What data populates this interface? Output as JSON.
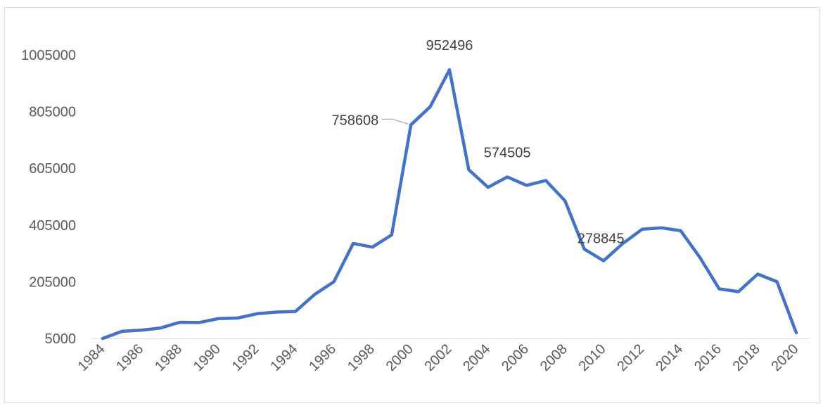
{
  "chart_data": {
    "type": "line",
    "title": "",
    "xlabel": "",
    "ylabel": "",
    "ylim": [
      5000,
      1005000
    ],
    "y_ticks": [
      5000,
      205000,
      405000,
      605000,
      805000,
      1005000
    ],
    "y_tick_labels": [
      "5000",
      "205000",
      "405000",
      "605000",
      "805000",
      "1005000"
    ],
    "x_tick_labels": [
      "1984",
      "1986",
      "1988",
      "1990",
      "1992",
      "1994",
      "1996",
      "1998",
      "2000",
      "2002",
      "2004",
      "2006",
      "2008",
      "2010",
      "2012",
      "2014",
      "2016",
      "2018",
      "2020"
    ],
    "grid": false,
    "legend": "none",
    "line_color": "#4472C4",
    "x": [
      1984,
      1985,
      1986,
      1987,
      1988,
      1989,
      1990,
      1991,
      1992,
      1993,
      1994,
      1995,
      1996,
      1997,
      1998,
      1999,
      2000,
      2001,
      2002,
      2003,
      2004,
      2005,
      2006,
      2007,
      2008,
      2009,
      2010,
      2011,
      2012,
      2013,
      2014,
      2015,
      2016,
      2017,
      2018,
      2019,
      2020
    ],
    "series": [
      {
        "values": [
          5000,
          30000,
          34000,
          42000,
          62000,
          61000,
          75000,
          77000,
          92000,
          98000,
          100000,
          160000,
          205000,
          340000,
          327000,
          370000,
          758608,
          822000,
          952496,
          600000,
          538000,
          574505,
          545000,
          562000,
          490000,
          320000,
          278845,
          340000,
          390000,
          395000,
          385000,
          290000,
          180000,
          170000,
          232000,
          205000,
          25000
        ]
      }
    ],
    "data_labels": [
      {
        "x": 2000,
        "text": "758608"
      },
      {
        "x": 2002,
        "text": "952496"
      },
      {
        "x": 2005,
        "text": "574505"
      },
      {
        "x": 2010,
        "text": "278845"
      }
    ]
  }
}
